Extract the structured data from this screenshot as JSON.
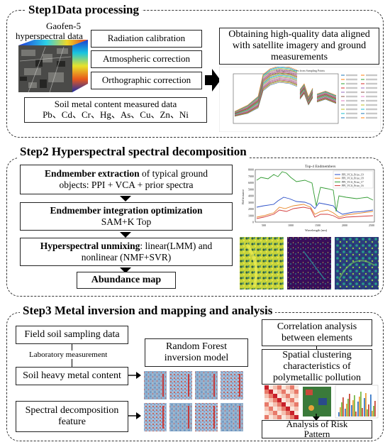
{
  "step1": {
    "title": "Step1Data processing",
    "cube_label_line1": "Gaofen-5",
    "cube_label_line2": "hyperspectral data",
    "processes": [
      "Radiation calibration",
      "Atmospheric correction",
      "Orthographic correction"
    ],
    "result_line1": "Obtaining high-quality data aligned",
    "result_line2": "with satellite imagery and ground",
    "result_line3": "measurements",
    "soil_line1": "Soil metal content measured data",
    "soil_line2": "Pb、Cd、Cr、Hg、As、Cu、Zn、Ni",
    "spectra_chart_title": "Soil Spectral Curves from Sampling Points"
  },
  "step2": {
    "title": "Step2 Hyperspectral spectral decomposition",
    "box1_bold": "Endmember extraction",
    "box1_rest": " of typical ground",
    "box1_line2": "objects: PPI + VCA + prior spectra",
    "box2_bold": "Endmember integration optimization",
    "box2_line2": "SAM+K Top",
    "box3_bold": "Hyperspectral unmixing",
    "box3_rest": ": linear(LMM) and",
    "box3_line2": "nonlinear (NMF+SVR)",
    "box4": "Abundance map",
    "chart": {
      "title": "Top-4 Endmembers",
      "ylabel": "Reflectance",
      "xlabel": "Wavelength (nm)",
      "xticks": [
        "500",
        "1000",
        "1500",
        "2000",
        "2500"
      ],
      "yticks": [
        "0",
        "1000",
        "2000",
        "3000",
        "4000",
        "5000",
        "6000",
        "7000",
        "8000"
      ],
      "legend": [
        "PPI_VCA_Prior_19",
        "PPI_VCA_Prior_18",
        "PPI_VCA_Prior_17",
        "PPI_VCA_Prior_16"
      ],
      "colors": [
        "#2b4fc7",
        "#e8872b",
        "#2f9a2f",
        "#d23a3a"
      ]
    }
  },
  "step3": {
    "title": "Step3 Metal inversion and mapping and analysis",
    "field": "Field soil sampling data",
    "lab": "Laboratory measurement",
    "heavy": "Soil heavy metal content",
    "spectral_line1": "Spectral decomposition",
    "spectral_line2": "feature",
    "rf_line1": "Random Forest",
    "rf_line2": "inversion model",
    "corr_line1": "Correlation analysis",
    "corr_line2": "between elements",
    "spatial_line1": "Spatial clustering",
    "spatial_line2": "characteristics of",
    "spatial_line3": "polymetallic pollution",
    "risk_line1": "Analysis of Risk",
    "risk_line2": "Pattern"
  }
}
